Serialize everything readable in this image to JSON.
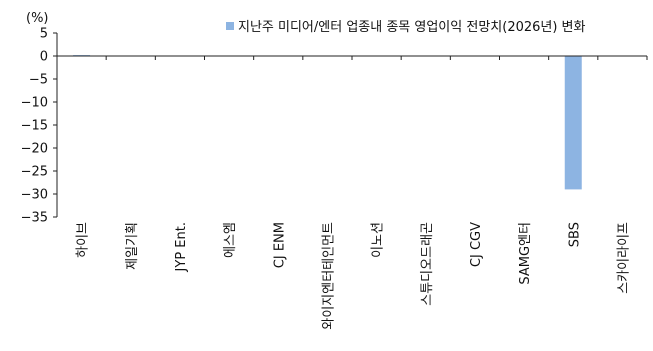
{
  "chart_data": {
    "type": "bar",
    "y_unit_label": "(%)",
    "legend": {
      "label": "지난주 미디어/엔터 업종내 종목 영업이익 전망치(2026년) 변화",
      "placement": "top-right"
    },
    "categories": [
      "하이브",
      "제일기획",
      "JYP Ent.",
      "에스엠",
      "CJ ENM",
      "와이지엔터테인먼트",
      "이노션",
      "스튜디오드래곤",
      "CJ CGV",
      "SAMG엔터",
      "SBS",
      "스카이라이프"
    ],
    "series": [
      {
        "name": "지난주 미디어/엔터 업종내 종목 영업이익 전망치(2026년) 변화",
        "values": [
          0.2,
          0,
          0,
          0,
          0,
          0,
          0,
          0,
          0,
          0,
          -29,
          0
        ]
      }
    ],
    "ylim": [
      -35,
      5
    ],
    "yticks": [
      5,
      0,
      -5,
      -10,
      -15,
      -20,
      -25,
      -30,
      -35
    ],
    "ytick_labels": [
      "5",
      "0",
      "−5",
      "−10",
      "−15",
      "−20",
      "−25",
      "−30",
      "−35"
    ],
    "grid": false,
    "bar_color": "#8db4e2",
    "axis_color": "#222222"
  }
}
